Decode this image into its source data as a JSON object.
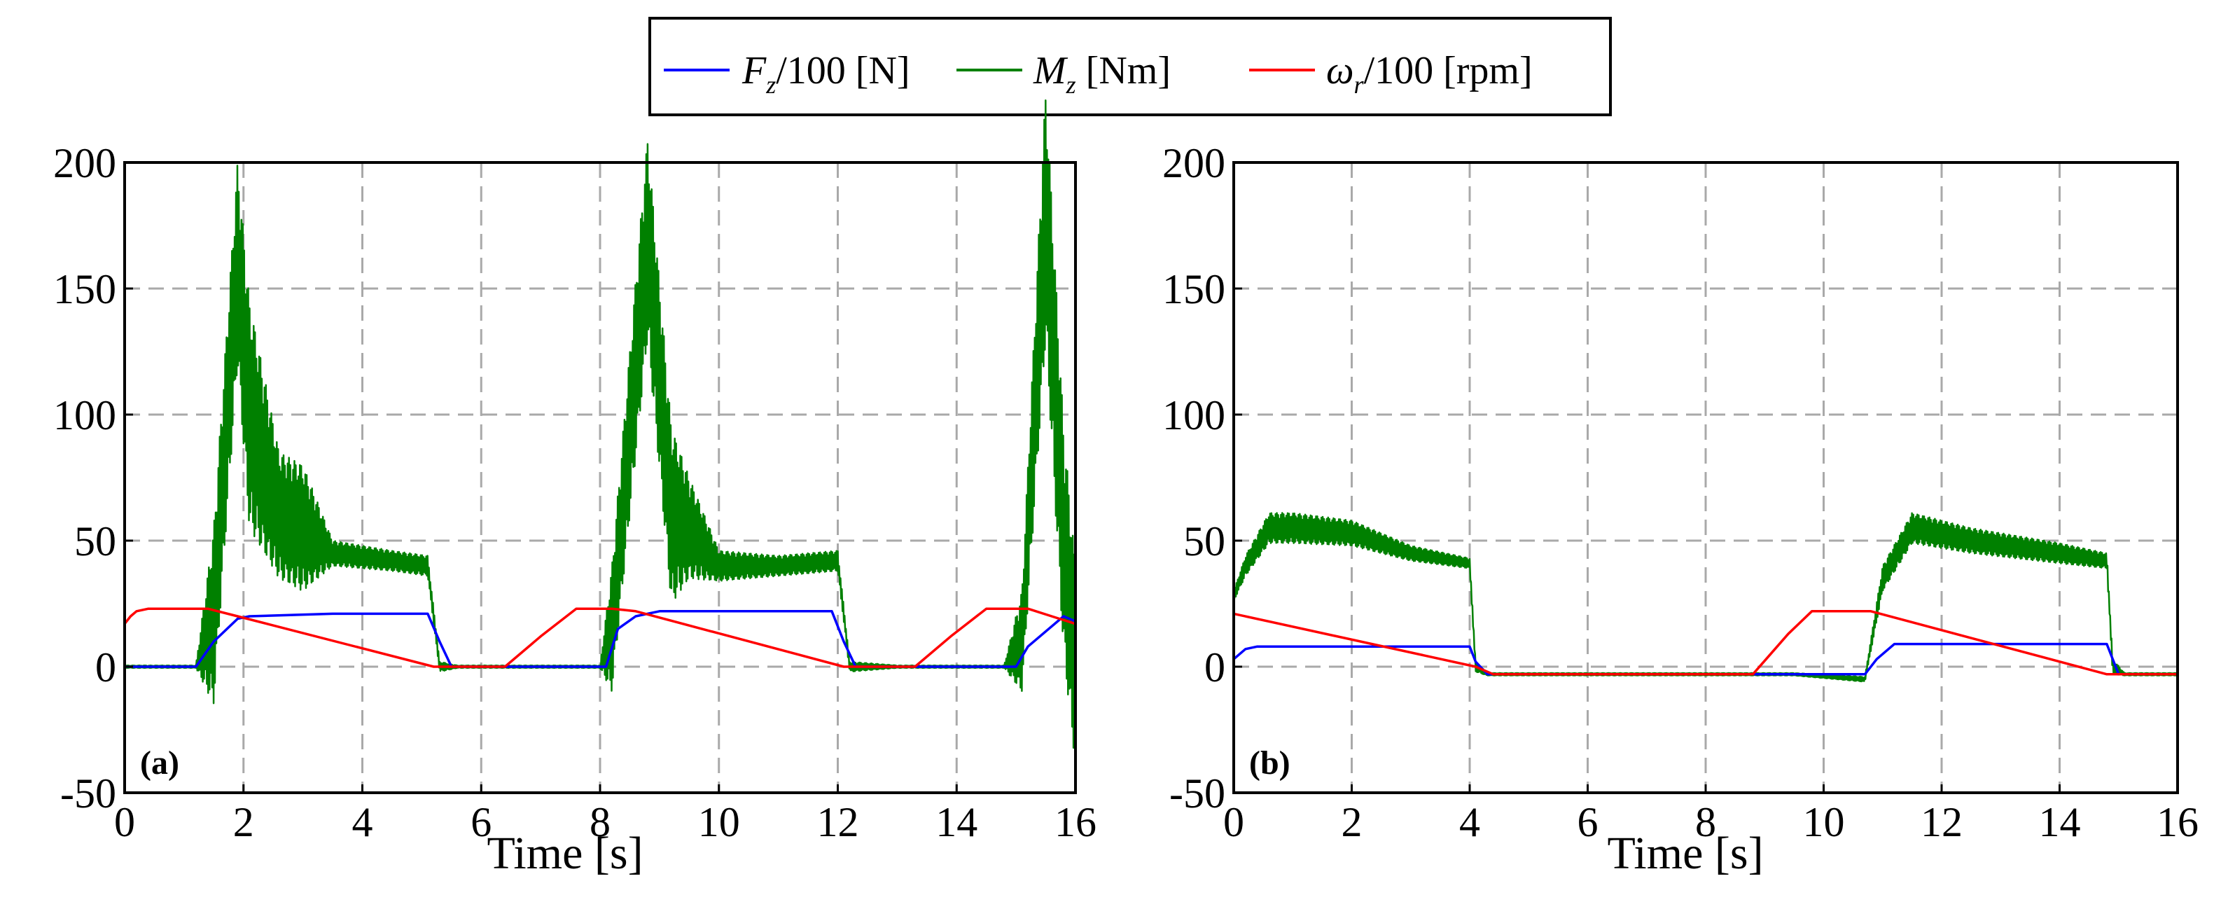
{
  "chart_data": [
    {
      "type": "line",
      "panel_label": "(a)",
      "xlabel": "Time [s]",
      "ylabel": "",
      "xlim": [
        0,
        16
      ],
      "ylim": [
        -50,
        200
      ],
      "xticks": [
        0,
        2,
        4,
        6,
        8,
        10,
        12,
        14,
        16
      ],
      "yticks": [
        -50,
        0,
        50,
        100,
        150,
        200
      ],
      "grid": true,
      "series": [
        {
          "name": "Fz/100 [N]",
          "color": "#0000ff",
          "x": [
            0,
            1.2,
            1.5,
            1.9,
            2.1,
            3.5,
            5.1,
            5.3,
            5.5,
            6.5,
            8.1,
            8.3,
            8.6,
            9.0,
            11.9,
            12.1,
            12.3,
            13.5,
            15.0,
            15.2,
            15.5,
            15.8,
            16.0
          ],
          "values": [
            0,
            0,
            10,
            19,
            20,
            21,
            21,
            10,
            0,
            0,
            0,
            15,
            20,
            22,
            22,
            10,
            0,
            0,
            0,
            8,
            14,
            20,
            18
          ]
        },
        {
          "name": "Mz [Nm]",
          "color": "#008000",
          "oscillating": true,
          "x": [
            0,
            1.2,
            1.5,
            1.9,
            2.1,
            2.6,
            3.0,
            3.5,
            4.5,
            5.1,
            5.3,
            5.6,
            8.0,
            8.2,
            8.8,
            9.2,
            9.5,
            10.0,
            11.0,
            12.0,
            12.2,
            13.0,
            14.8,
            15.1,
            15.5,
            15.8,
            16.0
          ],
          "values": [
            0,
            0,
            20,
            160,
            100,
            60,
            55,
            45,
            42,
            40,
            0,
            0,
            0,
            15,
            170,
            60,
            55,
            40,
            40,
            42,
            0,
            0,
            0,
            10,
            180,
            50,
            0
          ],
          "amplitude": [
            0.5,
            0.5,
            35,
            40,
            45,
            25,
            25,
            5,
            4,
            4,
            2,
            0.5,
            0.5,
            25,
            40,
            35,
            20,
            6,
            4,
            4,
            2,
            0.5,
            0.5,
            20,
            50,
            45,
            40
          ]
        },
        {
          "name": "ωr/100 [rpm]",
          "color": "#ff0000",
          "x": [
            0,
            0.1,
            0.2,
            0.4,
            1.4,
            1.9,
            5.2,
            6.4,
            7.0,
            7.6,
            8.2,
            8.6,
            12.1,
            13.3,
            13.9,
            14.5,
            15.2,
            15.6,
            16.0
          ],
          "values": [
            17,
            20,
            22,
            23,
            23,
            20,
            0,
            0,
            12,
            23,
            23,
            22,
            0,
            0,
            12,
            23,
            23,
            20,
            17
          ]
        }
      ]
    },
    {
      "type": "line",
      "panel_label": "(b)",
      "xlabel": "Time [s]",
      "ylabel": "",
      "xlim": [
        0,
        16
      ],
      "ylim": [
        -50,
        200
      ],
      "xticks": [
        0,
        2,
        4,
        6,
        8,
        10,
        12,
        14,
        16
      ],
      "yticks": [
        -50,
        0,
        50,
        100,
        150,
        200
      ],
      "grid": true,
      "series": [
        {
          "name": "Fz/100 [N]",
          "color": "#0000ff",
          "x": [
            0,
            0.2,
            0.4,
            4.0,
            4.1,
            4.3,
            10.7,
            10.9,
            11.2,
            14.8,
            15.0,
            16.0
          ],
          "values": [
            3,
            7,
            8,
            8,
            2,
            -3,
            -3,
            3,
            9,
            9,
            -3,
            -3
          ]
        },
        {
          "name": "Mz [Nm]",
          "color": "#008000",
          "oscillating": true,
          "x": [
            0,
            0.2,
            0.6,
            1.0,
            2.0,
            3.0,
            4.0,
            4.1,
            4.3,
            9.5,
            10.7,
            11.0,
            11.5,
            12.5,
            14.0,
            14.8,
            14.9,
            15.1,
            16.0
          ],
          "values": [
            28,
            40,
            55,
            55,
            53,
            45,
            41,
            0,
            -3,
            -3,
            -5,
            35,
            55,
            50,
            45,
            42,
            0,
            -3,
            -3
          ],
          "amplitude": [
            2,
            4,
            6,
            6,
            5,
            3,
            2,
            2,
            0.5,
            0.5,
            1,
            5,
            6,
            5,
            4,
            3,
            3,
            0.5,
            0.5
          ]
        },
        {
          "name": "ωr/100 [rpm]",
          "color": "#ff0000",
          "x": [
            0,
            4.1,
            4.4,
            8.8,
            9.4,
            9.8,
            10.8,
            14.8,
            16.0
          ],
          "values": [
            21,
            0,
            -3,
            -3,
            13,
            22,
            22,
            -3,
            -3
          ]
        }
      ]
    }
  ],
  "legend": {
    "position": "top-center",
    "items": [
      {
        "symbol": "F",
        "subscript": "z",
        "rest": "/100 [N]",
        "color": "#0000ff"
      },
      {
        "symbol": "M",
        "subscript": "z",
        "rest": " [Nm]",
        "color": "#008000"
      },
      {
        "symbol": "ω",
        "subscript": "r",
        "rest": "/100 [rpm]",
        "color": "#ff0000"
      }
    ]
  }
}
